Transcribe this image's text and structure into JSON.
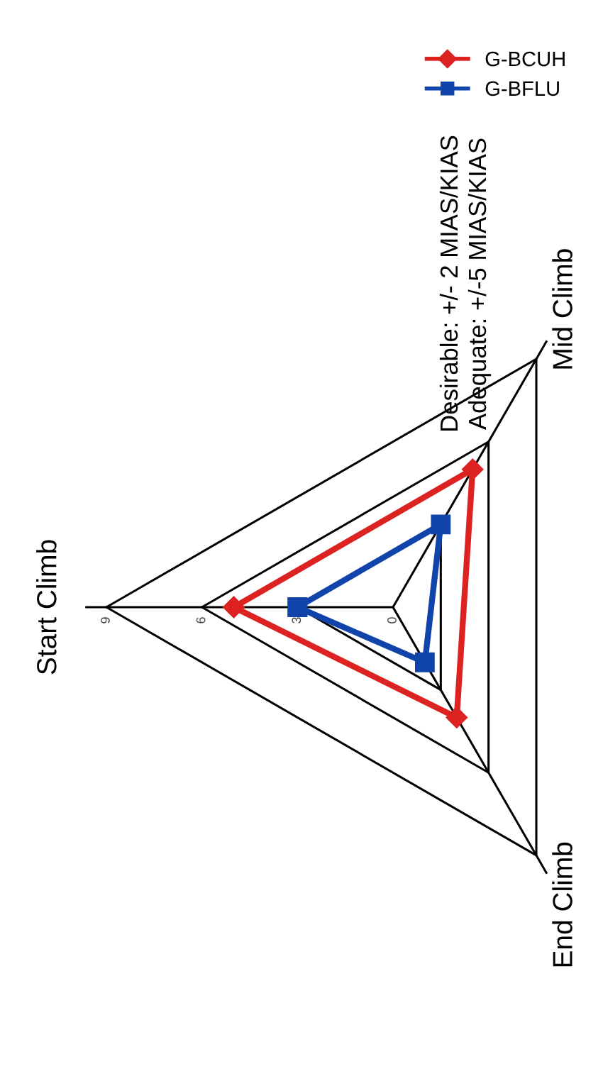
{
  "chart_data": {
    "type": "radar",
    "categories": [
      "Start Climb",
      "Mid Climb",
      "End Climb"
    ],
    "ylim": [
      0,
      9
    ],
    "yticks": [
      0,
      3,
      6,
      9
    ],
    "series": [
      {
        "name": "G-BCUH",
        "color": "#dd2222",
        "marker": "diamond",
        "values": [
          5,
          5,
          4
        ]
      },
      {
        "name": "G-BFLU",
        "color": "#1144aa",
        "marker": "square",
        "values": [
          3,
          3,
          2
        ]
      }
    ],
    "legend": "top right",
    "annotations": [
      "Desirable: +/- 2 MIAS/KIAS",
      "Adequate: +/-5 MIAS/KIAS"
    ]
  }
}
